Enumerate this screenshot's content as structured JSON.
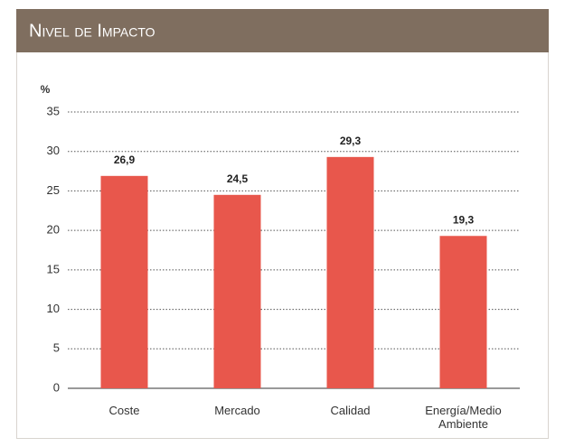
{
  "chart_data": {
    "type": "bar",
    "title": "Nivel de Impacto",
    "y_label": "%",
    "categories": [
      "Coste",
      "Mercado",
      "Calidad",
      "Energía/Medio Ambiente"
    ],
    "values": [
      26.9,
      24.5,
      29.3,
      19.3
    ],
    "value_labels": [
      "26,9",
      "24,5",
      "29,3",
      "19,3"
    ],
    "color": "#e8574c",
    "ylim": [
      0,
      35
    ],
    "yticks": [
      0,
      5,
      10,
      15,
      20,
      25,
      30,
      35
    ],
    "grid": true
  }
}
